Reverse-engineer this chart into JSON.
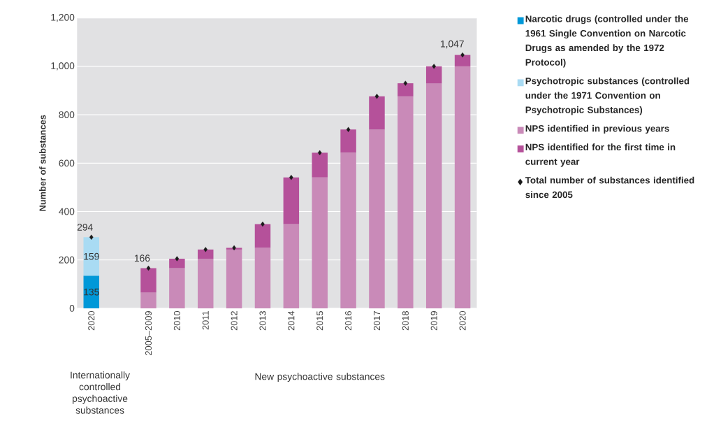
{
  "chart_data": {
    "type": "bar",
    "stacked": true,
    "ylabel": "Number of substances",
    "categories": [
      "2020",
      null,
      "2005–2009",
      "2010",
      "2011",
      "2012",
      "2013",
      "2014",
      "2015",
      "2016",
      "2017",
      "2018",
      "2019",
      "2020"
    ],
    "series": [
      {
        "name": "Narcotic drugs (controlled under the 1961 Single Convention on Narcotic Drugs as amended by the 1972 Protocol)",
        "color": "#0098d8",
        "values": [
          135,
          null,
          null,
          null,
          null,
          null,
          null,
          null,
          null,
          null,
          null,
          null,
          null,
          null
        ],
        "value_labels": [
          "135",
          null,
          null,
          null,
          null,
          null,
          null,
          null,
          null,
          null,
          null,
          null,
          null,
          null
        ]
      },
      {
        "name": "Psychotropic substances (controlled under the 1971 Convention on Psychotropic Substances)",
        "color": "#a9dbf3",
        "values": [
          159,
          null,
          null,
          null,
          null,
          null,
          null,
          null,
          null,
          null,
          null,
          null,
          null,
          null
        ],
        "value_labels": [
          "159",
          null,
          null,
          null,
          null,
          null,
          null,
          null,
          null,
          null,
          null,
          null,
          null,
          null
        ]
      },
      {
        "name": "NPS identified in previous years",
        "color": "#c98ab8",
        "values": [
          null,
          null,
          65,
          166,
          205,
          243,
          250,
          348,
          541,
          643,
          739,
          876,
          930,
          1000
        ]
      },
      {
        "name": "NPS identified for the first time in current year",
        "color": "#b5519a",
        "values": [
          null,
          null,
          101,
          39,
          38,
          7,
          98,
          193,
          102,
          96,
          137,
          54,
          70,
          47
        ]
      },
      {
        "name": "Total number of substances identified since 2005",
        "type": "scatter",
        "marker": "diamond",
        "color": "#1a1a1a",
        "values": [
          294,
          null,
          166,
          205,
          243,
          250,
          348,
          541,
          643,
          739,
          876,
          930,
          1000,
          1047
        ],
        "value_labels": [
          "294",
          null,
          "166",
          null,
          null,
          null,
          null,
          null,
          null,
          null,
          null,
          null,
          null,
          "1,047"
        ]
      }
    ],
    "ylim": [
      0,
      1200
    ],
    "yticks": [
      0,
      200,
      400,
      600,
      800,
      {
        "value": 1000,
        "label": "1,000"
      },
      {
        "value": 1200,
        "label": "1,200"
      }
    ],
    "grid": "y",
    "legend": "right",
    "annotations": [
      "Internationally controlled psychoactive substances",
      "New psychoactive substances"
    ]
  }
}
